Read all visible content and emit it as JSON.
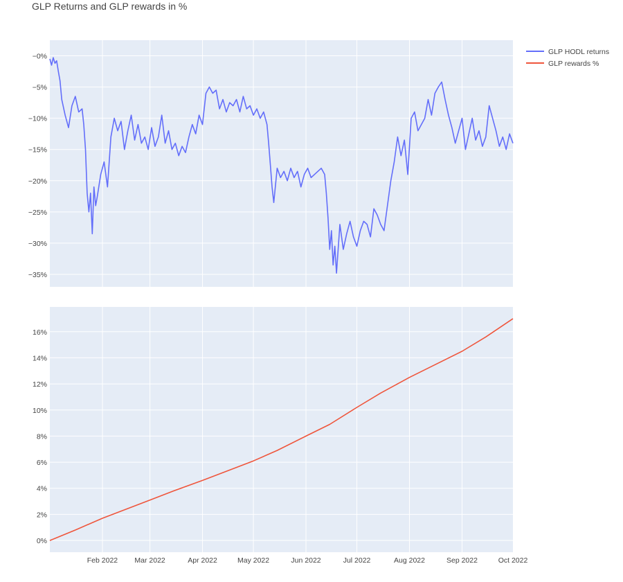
{
  "title": "GLP Returns and GLP rewards in %",
  "legend": [
    {
      "label": "GLP HODL returns",
      "color": "#636efa"
    },
    {
      "label": "GLP rewards %",
      "color": "#ef553b"
    }
  ],
  "chart_data": [
    {
      "type": "line",
      "title": "GLP Returns and GLP rewards in %",
      "xlabel": "",
      "ylabel": "",
      "x_range": [
        "2022-01-01",
        "2022-10-01"
      ],
      "ylim": [
        -37,
        2.5
      ],
      "yticks": [
        0,
        -5,
        -10,
        -15,
        -20,
        -25,
        -30,
        -35
      ],
      "ytick_labels": [
        "−0%",
        "−5%",
        "−10%",
        "−15%",
        "−20%",
        "−25%",
        "−30%",
        "−35%"
      ],
      "grid": true,
      "legend": "top-right",
      "series": [
        {
          "name": "GLP HODL returns",
          "color": "#636efa",
          "x": [
            "2022-01-01",
            "2022-01-02",
            "2022-01-03",
            "2022-01-04",
            "2022-01-05",
            "2022-01-06",
            "2022-01-07",
            "2022-01-08",
            "2022-01-10",
            "2022-01-12",
            "2022-01-14",
            "2022-01-16",
            "2022-01-18",
            "2022-01-20",
            "2022-01-21",
            "2022-01-22",
            "2022-01-23",
            "2022-01-24",
            "2022-01-25",
            "2022-01-26",
            "2022-01-27",
            "2022-01-28",
            "2022-01-29",
            "2022-01-31",
            "2022-02-02",
            "2022-02-04",
            "2022-02-06",
            "2022-02-08",
            "2022-02-10",
            "2022-02-12",
            "2022-02-14",
            "2022-02-16",
            "2022-02-18",
            "2022-02-20",
            "2022-02-22",
            "2022-02-24",
            "2022-02-26",
            "2022-02-28",
            "2022-03-02",
            "2022-03-04",
            "2022-03-06",
            "2022-03-08",
            "2022-03-10",
            "2022-03-12",
            "2022-03-14",
            "2022-03-16",
            "2022-03-18",
            "2022-03-20",
            "2022-03-22",
            "2022-03-24",
            "2022-03-26",
            "2022-03-28",
            "2022-03-30",
            "2022-04-01",
            "2022-04-03",
            "2022-04-05",
            "2022-04-07",
            "2022-04-09",
            "2022-04-11",
            "2022-04-13",
            "2022-04-15",
            "2022-04-17",
            "2022-04-19",
            "2022-04-21",
            "2022-04-23",
            "2022-04-25",
            "2022-04-27",
            "2022-04-29",
            "2022-05-01",
            "2022-05-03",
            "2022-05-05",
            "2022-05-07",
            "2022-05-09",
            "2022-05-10",
            "2022-05-11",
            "2022-05-12",
            "2022-05-13",
            "2022-05-15",
            "2022-05-17",
            "2022-05-19",
            "2022-05-21",
            "2022-05-23",
            "2022-05-25",
            "2022-05-27",
            "2022-05-29",
            "2022-05-31",
            "2022-06-02",
            "2022-06-04",
            "2022-06-06",
            "2022-06-08",
            "2022-06-10",
            "2022-06-12",
            "2022-06-13",
            "2022-06-14",
            "2022-06-15",
            "2022-06-16",
            "2022-06-17",
            "2022-06-18",
            "2022-06-19",
            "2022-06-21",
            "2022-06-23",
            "2022-06-25",
            "2022-06-27",
            "2022-06-29",
            "2022-07-01",
            "2022-07-03",
            "2022-07-05",
            "2022-07-07",
            "2022-07-09",
            "2022-07-11",
            "2022-07-13",
            "2022-07-15",
            "2022-07-17",
            "2022-07-19",
            "2022-07-21",
            "2022-07-23",
            "2022-07-25",
            "2022-07-27",
            "2022-07-29",
            "2022-07-31",
            "2022-08-02",
            "2022-08-04",
            "2022-08-06",
            "2022-08-08",
            "2022-08-10",
            "2022-08-12",
            "2022-08-14",
            "2022-08-16",
            "2022-08-18",
            "2022-08-20",
            "2022-08-22",
            "2022-08-24",
            "2022-08-26",
            "2022-08-28",
            "2022-08-30",
            "2022-09-01",
            "2022-09-03",
            "2022-09-05",
            "2022-09-07",
            "2022-09-09",
            "2022-09-11",
            "2022-09-13",
            "2022-09-15",
            "2022-09-17",
            "2022-09-19",
            "2022-09-21",
            "2022-09-23",
            "2022-09-25",
            "2022-09-27",
            "2022-09-29",
            "2022-10-01"
          ],
          "y": [
            -0.5,
            -1.5,
            -0.3,
            -1.2,
            -0.8,
            -2.5,
            -4.0,
            -7.0,
            -9.5,
            -11.5,
            -8.0,
            -6.5,
            -9.0,
            -8.5,
            -11.0,
            -15.0,
            -22.0,
            -25.0,
            -22.0,
            -28.5,
            -21.0,
            -24.0,
            -22.5,
            -19.0,
            -17.0,
            -21.0,
            -13.0,
            -10.0,
            -12.0,
            -10.5,
            -15.0,
            -12.0,
            -9.5,
            -13.5,
            -11.0,
            -14.0,
            -13.0,
            -15.0,
            -11.5,
            -14.5,
            -13.0,
            -9.5,
            -14.0,
            -12.0,
            -15.0,
            -14.0,
            -16.0,
            -14.5,
            -15.5,
            -13.0,
            -11.0,
            -12.5,
            -9.5,
            -11.0,
            -6.0,
            -5.0,
            -6.0,
            -5.5,
            -8.5,
            -7.0,
            -9.0,
            -7.5,
            -8.0,
            -7.0,
            -9.0,
            -6.5,
            -8.5,
            -8.0,
            -9.5,
            -8.5,
            -10.0,
            -9.0,
            -11.0,
            -14.0,
            -17.5,
            -21.0,
            -23.5,
            -18.0,
            -19.5,
            -18.5,
            -20.0,
            -18.0,
            -19.5,
            -18.5,
            -21.0,
            -19.0,
            -18.0,
            -19.5,
            -19.0,
            -18.5,
            -18.0,
            -19.0,
            -22.0,
            -26.0,
            -31.0,
            -28.0,
            -33.5,
            -30.5,
            -34.8,
            -27.0,
            -31.0,
            -28.5,
            -26.5,
            -29.0,
            -30.5,
            -28.0,
            -26.5,
            -27.0,
            -29.0,
            -24.5,
            -25.5,
            -27.0,
            -28.0,
            -24.0,
            -20.0,
            -17.0,
            -13.0,
            -16.0,
            -13.5,
            -19.0,
            -10.0,
            -9.0,
            -12.0,
            -11.0,
            -10.0,
            -7.0,
            -9.5,
            -6.0,
            -5.0,
            -4.2,
            -7.0,
            -9.5,
            -11.5,
            -14.0,
            -12.0,
            -10.0,
            -15.0,
            -12.5,
            -10.0,
            -13.5,
            -12.0,
            -14.5,
            -13.0,
            -8.0,
            -10.0,
            -12.0,
            -14.5,
            -13.0,
            -15.0,
            -12.5,
            -14.0
          ]
        }
      ]
    },
    {
      "type": "line",
      "xlabel": "",
      "ylabel": "",
      "x_range": [
        "2022-01-01",
        "2022-10-01"
      ],
      "ylim": [
        -0.9,
        17.9
      ],
      "yticks": [
        0,
        2,
        4,
        6,
        8,
        10,
        12,
        14,
        16
      ],
      "ytick_labels": [
        "0%",
        "2%",
        "4%",
        "6%",
        "8%",
        "10%",
        "12%",
        "14%",
        "16%"
      ],
      "xticks": [
        "2022-02-01",
        "2022-03-01",
        "2022-04-01",
        "2022-05-01",
        "2022-06-01",
        "2022-07-01",
        "2022-08-01",
        "2022-09-01",
        "2022-10-01"
      ],
      "xtick_labels": [
        "Feb 2022",
        "Mar 2022",
        "Apr 2022",
        "May 2022",
        "Jun 2022",
        "Jul 2022",
        "Aug 2022",
        "Sep 2022",
        "Oct 2022"
      ],
      "grid": true,
      "series": [
        {
          "name": "GLP rewards %",
          "color": "#ef553b",
          "x": [
            "2022-01-01",
            "2022-01-16",
            "2022-02-01",
            "2022-02-15",
            "2022-03-01",
            "2022-03-15",
            "2022-04-01",
            "2022-04-15",
            "2022-05-01",
            "2022-05-15",
            "2022-06-01",
            "2022-06-15",
            "2022-07-01",
            "2022-07-15",
            "2022-08-01",
            "2022-08-15",
            "2022-09-01",
            "2022-09-15",
            "2022-10-01"
          ],
          "y": [
            0.0,
            0.8,
            1.7,
            2.4,
            3.1,
            3.8,
            4.6,
            5.3,
            6.1,
            6.9,
            8.0,
            8.9,
            10.2,
            11.3,
            12.5,
            13.4,
            14.5,
            15.6,
            17.0
          ]
        }
      ]
    }
  ]
}
